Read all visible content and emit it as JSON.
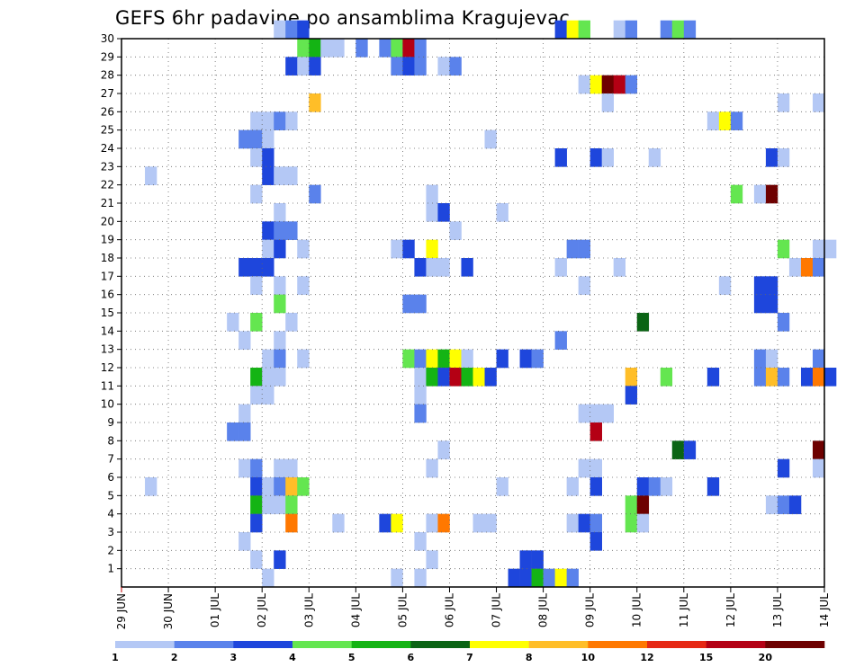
{
  "chart_data": {
    "type": "heatmap",
    "title": "GEFS 6hr padavine po ansamblima Kragujevac",
    "y_ticks": [
      "1",
      "2",
      "3",
      "4",
      "5",
      "6",
      "7",
      "8",
      "9",
      "10",
      "11",
      "12",
      "13",
      "14",
      "15",
      "16",
      "17",
      "18",
      "19",
      "20",
      "21",
      "22",
      "23",
      "24",
      "25",
      "26",
      "27",
      "28",
      "29",
      "30"
    ],
    "x_ticks": [
      "29 JUN",
      "30 JUN",
      "01 JUL",
      "02 JUL",
      "03 JUL",
      "04 JUL",
      "05 JUL",
      "06 JUL",
      "07 JUL",
      "08 JUL",
      "09 JUL",
      "10 JUL",
      "11 JUL",
      "12 JUL",
      "13 JUL",
      "14 JUL"
    ],
    "x_unit": "6-hour step (4 steps per day, day 0 = 29 JUN)",
    "ylim": [
      0,
      30
    ],
    "grid": true,
    "legend": {
      "position": "bottom",
      "labels": [
        "1",
        "2",
        "3",
        "4",
        "5",
        "6",
        "7",
        "8",
        "10",
        "12",
        "15",
        "20"
      ],
      "colors": [
        "#b4c8f5",
        "#5a82eb",
        "#1e46dc",
        "#64e650",
        "#14b414",
        "#0a6414",
        "#ffff00",
        "#ffbe28",
        "#ff7800",
        "#e62814",
        "#b40014",
        "#6e0000"
      ]
    },
    "cells": [
      [
        30,
        13,
        1
      ],
      [
        30,
        14,
        2
      ],
      [
        30,
        15,
        3
      ],
      [
        30,
        37,
        3
      ],
      [
        30,
        38,
        7
      ],
      [
        30,
        39,
        4
      ],
      [
        30,
        42,
        1
      ],
      [
        30,
        43,
        2
      ],
      [
        30,
        46,
        2
      ],
      [
        30,
        47,
        4
      ],
      [
        30,
        48,
        2
      ],
      [
        29,
        15,
        4
      ],
      [
        29,
        16,
        5
      ],
      [
        29,
        17,
        1
      ],
      [
        29,
        18,
        1
      ],
      [
        29,
        20,
        2
      ],
      [
        29,
        22,
        2
      ],
      [
        29,
        23,
        4
      ],
      [
        29,
        24,
        11
      ],
      [
        29,
        25,
        2
      ],
      [
        28,
        14,
        3
      ],
      [
        28,
        15,
        1
      ],
      [
        28,
        16,
        3
      ],
      [
        28,
        23,
        2
      ],
      [
        28,
        24,
        3
      ],
      [
        28,
        25,
        2
      ],
      [
        28,
        27,
        1
      ],
      [
        28,
        28,
        2
      ],
      [
        27,
        39,
        1
      ],
      [
        27,
        40,
        7
      ],
      [
        27,
        41,
        12
      ],
      [
        27,
        42,
        11
      ],
      [
        27,
        43,
        2
      ],
      [
        26,
        16,
        8
      ],
      [
        26,
        41,
        1
      ],
      [
        26,
        56,
        1
      ],
      [
        26,
        59,
        1
      ],
      [
        25,
        11,
        1
      ],
      [
        25,
        12,
        1
      ],
      [
        25,
        13,
        2
      ],
      [
        25,
        14,
        1
      ],
      [
        25,
        50,
        1
      ],
      [
        25,
        51,
        7
      ],
      [
        25,
        52,
        2
      ],
      [
        24,
        10,
        2
      ],
      [
        24,
        11,
        2
      ],
      [
        24,
        12,
        1
      ],
      [
        24,
        31,
        1
      ],
      [
        23,
        11,
        1
      ],
      [
        23,
        12,
        3
      ],
      [
        23,
        37,
        3
      ],
      [
        23,
        40,
        3
      ],
      [
        23,
        41,
        1
      ],
      [
        23,
        45,
        1
      ],
      [
        23,
        55,
        3
      ],
      [
        23,
        56,
        1
      ],
      [
        22,
        2,
        1
      ],
      [
        22,
        12,
        3
      ],
      [
        22,
        13,
        1
      ],
      [
        22,
        14,
        1
      ],
      [
        21,
        11,
        1
      ],
      [
        21,
        16,
        2
      ],
      [
        21,
        26,
        1
      ],
      [
        21,
        52,
        4
      ],
      [
        21,
        54,
        1
      ],
      [
        21,
        55,
        12
      ],
      [
        20,
        13,
        1
      ],
      [
        20,
        26,
        1
      ],
      [
        20,
        27,
        3
      ],
      [
        20,
        32,
        1
      ],
      [
        19,
        12,
        3
      ],
      [
        19,
        13,
        2
      ],
      [
        19,
        14,
        2
      ],
      [
        19,
        28,
        1
      ],
      [
        18,
        12,
        1
      ],
      [
        18,
        13,
        3
      ],
      [
        18,
        15,
        1
      ],
      [
        18,
        23,
        1
      ],
      [
        18,
        24,
        3
      ],
      [
        18,
        26,
        7
      ],
      [
        18,
        38,
        2
      ],
      [
        18,
        39,
        2
      ],
      [
        18,
        56,
        4
      ],
      [
        18,
        59,
        1
      ],
      [
        18,
        60,
        1
      ],
      [
        17,
        10,
        3
      ],
      [
        17,
        11,
        3
      ],
      [
        17,
        12,
        3
      ],
      [
        17,
        25,
        3
      ],
      [
        17,
        26,
        1
      ],
      [
        17,
        27,
        1
      ],
      [
        17,
        29,
        3
      ],
      [
        17,
        37,
        1
      ],
      [
        17,
        42,
        1
      ],
      [
        17,
        57,
        1
      ],
      [
        17,
        58,
        9
      ],
      [
        17,
        59,
        2
      ],
      [
        16,
        11,
        1
      ],
      [
        16,
        13,
        1
      ],
      [
        16,
        15,
        1
      ],
      [
        16,
        39,
        1
      ],
      [
        16,
        51,
        1
      ],
      [
        16,
        54,
        3
      ],
      [
        16,
        55,
        3
      ],
      [
        15,
        13,
        4
      ],
      [
        15,
        24,
        2
      ],
      [
        15,
        25,
        2
      ],
      [
        15,
        54,
        3
      ],
      [
        15,
        55,
        3
      ],
      [
        14,
        9,
        1
      ],
      [
        14,
        11,
        4
      ],
      [
        14,
        14,
        1
      ],
      [
        14,
        44,
        6
      ],
      [
        14,
        56,
        2
      ],
      [
        13,
        10,
        1
      ],
      [
        13,
        13,
        1
      ],
      [
        13,
        37,
        2
      ],
      [
        12,
        12,
        1
      ],
      [
        12,
        13,
        2
      ],
      [
        12,
        15,
        1
      ],
      [
        12,
        24,
        4
      ],
      [
        12,
        25,
        2
      ],
      [
        12,
        26,
        7
      ],
      [
        12,
        27,
        5
      ],
      [
        12,
        28,
        7
      ],
      [
        12,
        29,
        1
      ],
      [
        12,
        32,
        3
      ],
      [
        12,
        34,
        3
      ],
      [
        12,
        35,
        2
      ],
      [
        12,
        54,
        2
      ],
      [
        12,
        55,
        1
      ],
      [
        12,
        59,
        2
      ],
      [
        11,
        11,
        5
      ],
      [
        11,
        12,
        1
      ],
      [
        11,
        13,
        1
      ],
      [
        11,
        25,
        1
      ],
      [
        11,
        26,
        5
      ],
      [
        11,
        27,
        3
      ],
      [
        11,
        28,
        11
      ],
      [
        11,
        29,
        5
      ],
      [
        11,
        30,
        7
      ],
      [
        11,
        31,
        3
      ],
      [
        11,
        43,
        8
      ],
      [
        11,
        46,
        4
      ],
      [
        11,
        50,
        3
      ],
      [
        11,
        54,
        2
      ],
      [
        11,
        55,
        8
      ],
      [
        11,
        56,
        2
      ],
      [
        11,
        58,
        3
      ],
      [
        11,
        59,
        9
      ],
      [
        11,
        60,
        3
      ],
      [
        10,
        11,
        1
      ],
      [
        10,
        12,
        1
      ],
      [
        10,
        25,
        1
      ],
      [
        10,
        43,
        3
      ],
      [
        9,
        10,
        1
      ],
      [
        9,
        25,
        2
      ],
      [
        9,
        39,
        1
      ],
      [
        9,
        40,
        1
      ],
      [
        9,
        41,
        1
      ],
      [
        8,
        9,
        2
      ],
      [
        8,
        10,
        2
      ],
      [
        8,
        40,
        11
      ],
      [
        7,
        27,
        1
      ],
      [
        7,
        47,
        6
      ],
      [
        7,
        48,
        3
      ],
      [
        7,
        59,
        12
      ],
      [
        6,
        10,
        1
      ],
      [
        6,
        11,
        2
      ],
      [
        6,
        13,
        1
      ],
      [
        6,
        14,
        1
      ],
      [
        6,
        26,
        1
      ],
      [
        6,
        39,
        1
      ],
      [
        6,
        40,
        1
      ],
      [
        6,
        56,
        3
      ],
      [
        6,
        59,
        1
      ],
      [
        5,
        2,
        1
      ],
      [
        5,
        11,
        3
      ],
      [
        5,
        12,
        1
      ],
      [
        5,
        13,
        2
      ],
      [
        5,
        14,
        8
      ],
      [
        5,
        15,
        4
      ],
      [
        5,
        32,
        1
      ],
      [
        5,
        38,
        1
      ],
      [
        5,
        40,
        3
      ],
      [
        5,
        44,
        3
      ],
      [
        5,
        45,
        2
      ],
      [
        5,
        46,
        1
      ],
      [
        5,
        50,
        3
      ],
      [
        4,
        11,
        5
      ],
      [
        4,
        12,
        1
      ],
      [
        4,
        13,
        1
      ],
      [
        4,
        14,
        4
      ],
      [
        4,
        43,
        4
      ],
      [
        4,
        44,
        12
      ],
      [
        4,
        55,
        1
      ],
      [
        4,
        56,
        2
      ],
      [
        4,
        57,
        3
      ],
      [
        3,
        11,
        3
      ],
      [
        3,
        14,
        9
      ],
      [
        3,
        18,
        1
      ],
      [
        3,
        22,
        3
      ],
      [
        3,
        23,
        7
      ],
      [
        3,
        26,
        1
      ],
      [
        3,
        27,
        9
      ],
      [
        3,
        30,
        1
      ],
      [
        3,
        31,
        1
      ],
      [
        3,
        38,
        1
      ],
      [
        3,
        39,
        3
      ],
      [
        3,
        40,
        2
      ],
      [
        3,
        43,
        4
      ],
      [
        3,
        44,
        1
      ],
      [
        2,
        10,
        1
      ],
      [
        2,
        25,
        1
      ],
      [
        2,
        40,
        3
      ],
      [
        1,
        11,
        1
      ],
      [
        1,
        13,
        3
      ],
      [
        1,
        26,
        1
      ],
      [
        1,
        34,
        3
      ],
      [
        1,
        35,
        3
      ],
      [
        0,
        12,
        1
      ],
      [
        0,
        23,
        1
      ],
      [
        0,
        25,
        1
      ],
      [
        0,
        33,
        3
      ],
      [
        0,
        34,
        3
      ],
      [
        0,
        35,
        5
      ],
      [
        0,
        36,
        2
      ],
      [
        0,
        37,
        7
      ],
      [
        0,
        38,
        2
      ]
    ]
  }
}
